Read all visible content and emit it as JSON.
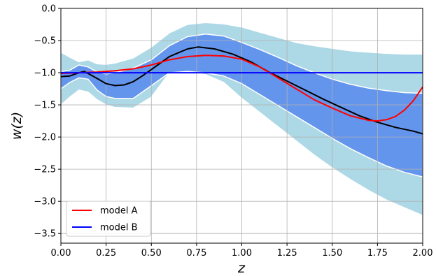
{
  "chart_data": {
    "type": "line",
    "title": "",
    "xlabel": "z",
    "ylabel": "w(z)",
    "xlim": [
      0.0,
      2.0
    ],
    "ylim": [
      -3.6,
      0.0
    ],
    "grid": true,
    "legend_position": "lower-left",
    "x_ticks": [
      "0.00",
      "0.25",
      "0.50",
      "0.75",
      "1.00",
      "1.25",
      "1.50",
      "1.75",
      "2.00"
    ],
    "y_ticks": [
      "0.0",
      "−0.5",
      "−1.0",
      "−1.5",
      "−2.0",
      "−2.5",
      "−3.0",
      "−3.5"
    ],
    "bands": [
      {
        "label": "outer",
        "color": "#add8e6",
        "x": [
          0.0,
          0.05,
          0.1,
          0.15,
          0.2,
          0.25,
          0.3,
          0.4,
          0.5,
          0.6,
          0.7,
          0.8,
          0.9,
          1.0,
          1.1,
          1.2,
          1.3,
          1.4,
          1.5,
          1.6,
          1.7,
          1.8,
          1.9,
          2.0
        ],
        "upper": [
          -0.68,
          -0.76,
          -0.83,
          -0.8,
          -0.86,
          -0.87,
          -0.85,
          -0.77,
          -0.6,
          -0.38,
          -0.25,
          -0.22,
          -0.24,
          -0.29,
          -0.37,
          -0.45,
          -0.53,
          -0.58,
          -0.62,
          -0.66,
          -0.68,
          -0.7,
          -0.71,
          -0.71
        ],
        "lower": [
          -1.5,
          -1.38,
          -1.27,
          -1.3,
          -1.42,
          -1.5,
          -1.54,
          -1.55,
          -1.38,
          -1.0,
          -0.98,
          -1.03,
          -1.15,
          -1.4,
          -1.62,
          -1.84,
          -2.06,
          -2.28,
          -2.48,
          -2.66,
          -2.83,
          -2.98,
          -3.1,
          -3.22
        ]
      },
      {
        "label": "inner",
        "color": "#6495ed",
        "x": [
          0.0,
          0.05,
          0.1,
          0.15,
          0.2,
          0.25,
          0.3,
          0.4,
          0.5,
          0.6,
          0.7,
          0.8,
          0.9,
          1.0,
          1.1,
          1.2,
          1.3,
          1.4,
          1.5,
          1.6,
          1.7,
          1.8,
          1.9,
          2.0
        ],
        "upper": [
          -0.98,
          -0.96,
          -0.88,
          -0.91,
          -0.99,
          -1.02,
          -1.0,
          -0.93,
          -0.8,
          -0.58,
          -0.44,
          -0.4,
          -0.43,
          -0.53,
          -0.64,
          -0.76,
          -0.89,
          -1.0,
          -1.1,
          -1.18,
          -1.24,
          -1.28,
          -1.31,
          -1.32
        ],
        "lower": [
          -1.25,
          -1.15,
          -1.08,
          -1.1,
          -1.27,
          -1.37,
          -1.4,
          -1.4,
          -1.2,
          -1.0,
          -0.98,
          -1.0,
          -1.05,
          -1.17,
          -1.34,
          -1.51,
          -1.68,
          -1.85,
          -2.02,
          -2.18,
          -2.32,
          -2.45,
          -2.55,
          -2.62
        ]
      }
    ],
    "series": [
      {
        "name": "",
        "color": "#000000",
        "x": [
          0.0,
          0.05,
          0.1,
          0.13,
          0.2,
          0.25,
          0.3,
          0.35,
          0.4,
          0.45,
          0.5,
          0.6,
          0.7,
          0.76,
          0.85,
          0.95,
          1.05,
          1.15,
          1.25,
          1.35,
          1.45,
          1.55,
          1.65,
          1.75,
          1.85,
          1.95,
          2.0
        ],
        "values": [
          -1.06,
          -1.05,
          -1.0,
          -0.98,
          -1.09,
          -1.17,
          -1.2,
          -1.19,
          -1.14,
          -1.05,
          -0.95,
          -0.75,
          -0.63,
          -0.6,
          -0.63,
          -0.71,
          -0.83,
          -0.99,
          -1.13,
          -1.27,
          -1.41,
          -1.54,
          -1.67,
          -1.77,
          -1.85,
          -1.91,
          -1.95
        ]
      },
      {
        "name": "model A",
        "color": "#ff0000",
        "x": [
          0.0,
          0.1,
          0.2,
          0.3,
          0.4,
          0.5,
          0.6,
          0.7,
          0.8,
          0.9,
          1.0,
          1.1,
          1.2,
          1.3,
          1.4,
          1.5,
          1.6,
          1.7,
          1.75,
          1.8,
          1.85,
          1.9,
          1.95,
          2.0
        ],
        "values": [
          -1.01,
          -1.0,
          -0.99,
          -0.97,
          -0.94,
          -0.88,
          -0.8,
          -0.75,
          -0.73,
          -0.74,
          -0.79,
          -0.91,
          -1.08,
          -1.25,
          -1.42,
          -1.55,
          -1.67,
          -1.74,
          -1.75,
          -1.73,
          -1.68,
          -1.58,
          -1.43,
          -1.22
        ]
      },
      {
        "name": "model B",
        "color": "#0000ff",
        "x": [
          0.0,
          2.0
        ],
        "values": [
          -1.0,
          -1.0
        ]
      }
    ]
  }
}
